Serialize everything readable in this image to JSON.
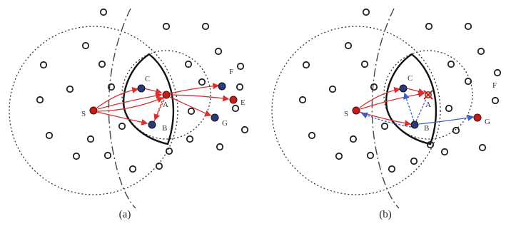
{
  "colors": {
    "node_ring": "#222222",
    "red_node": "#c0201c",
    "blue_node": "#2a3a7a",
    "red_arrow": "#d83030",
    "blue_arrow": "#3a5fc8",
    "dotted_circle": "#333333",
    "dashdot": "#444444",
    "lens": "#111111"
  },
  "panels": [
    {
      "caption": "(a)",
      "labels": {
        "S": "S",
        "C": "C",
        "A": "A",
        "B": "B",
        "F": "F",
        "E": "E",
        "G": "G"
      }
    },
    {
      "caption": "(b)",
      "labels": {
        "S": "S",
        "C": "C",
        "A": "A",
        "B": "B",
        "F": "F",
        "G": "G"
      }
    }
  ]
}
